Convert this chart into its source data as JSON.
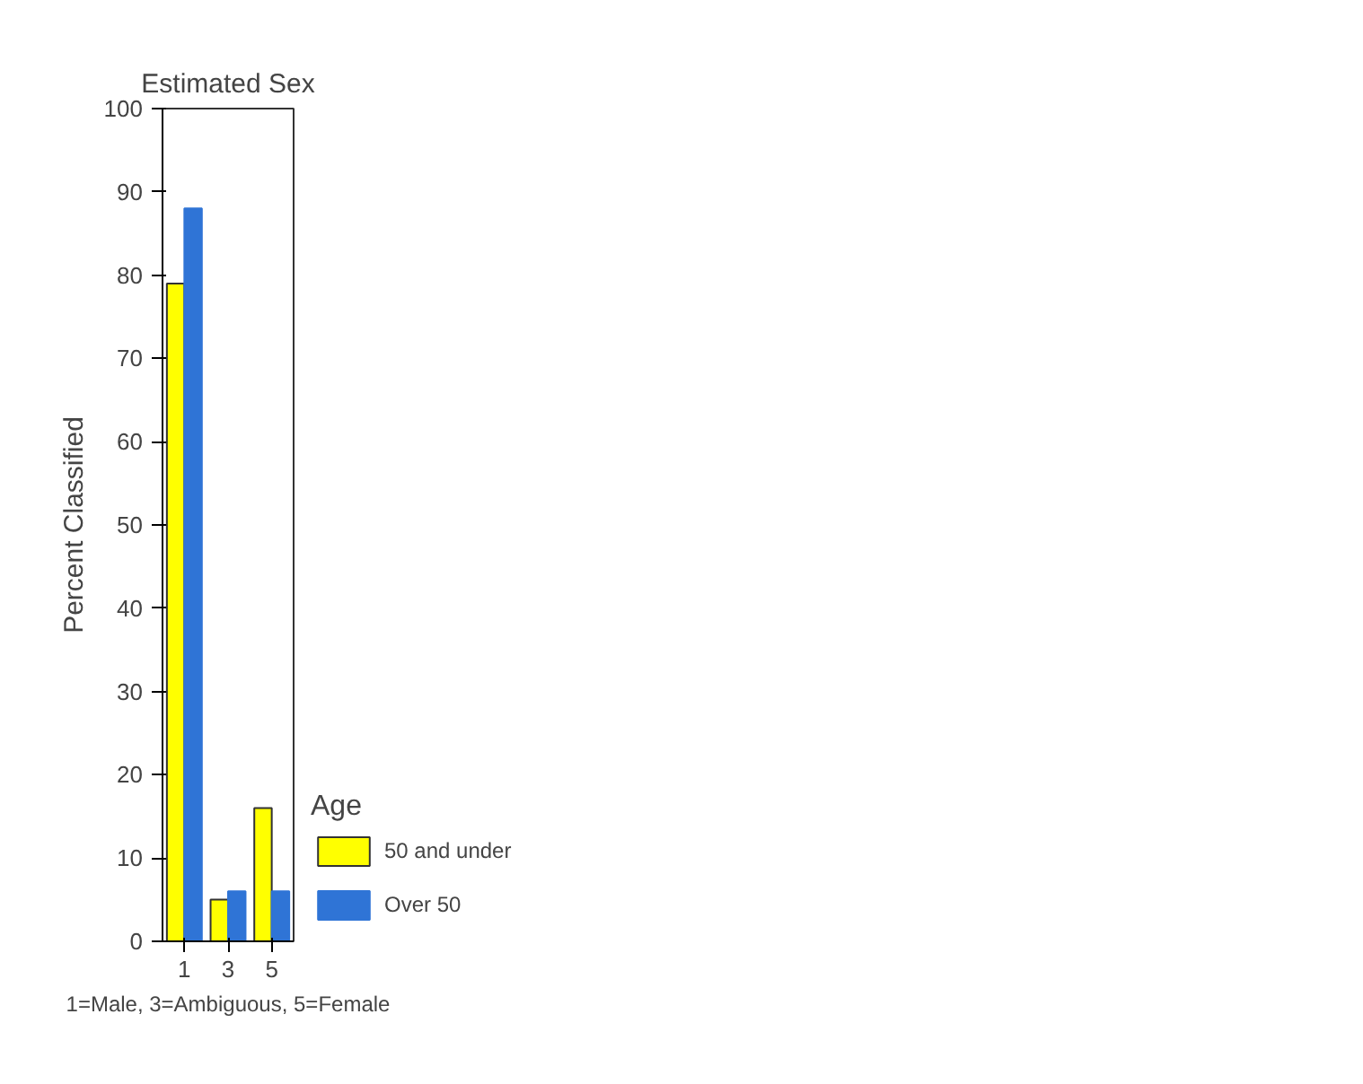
{
  "chart_data": {
    "type": "bar",
    "title": "Estimated Sex",
    "xlabel": "1=Male, 3=Ambiguous, 5=Female",
    "ylabel": "Percent Classified",
    "legend_title": "Age",
    "categories": [
      "1",
      "3",
      "5"
    ],
    "series": [
      {
        "name": "50 and under",
        "color": "#ffff00",
        "values": [
          79,
          5,
          16
        ]
      },
      {
        "name": "Over 50",
        "color": "#2f74d6",
        "values": [
          88,
          6,
          6
        ]
      }
    ],
    "ylim": [
      0,
      100
    ],
    "yticks": [
      0,
      10,
      20,
      30,
      40,
      50,
      60,
      70,
      80,
      90,
      100
    ],
    "grid": false,
    "legend": "right"
  }
}
